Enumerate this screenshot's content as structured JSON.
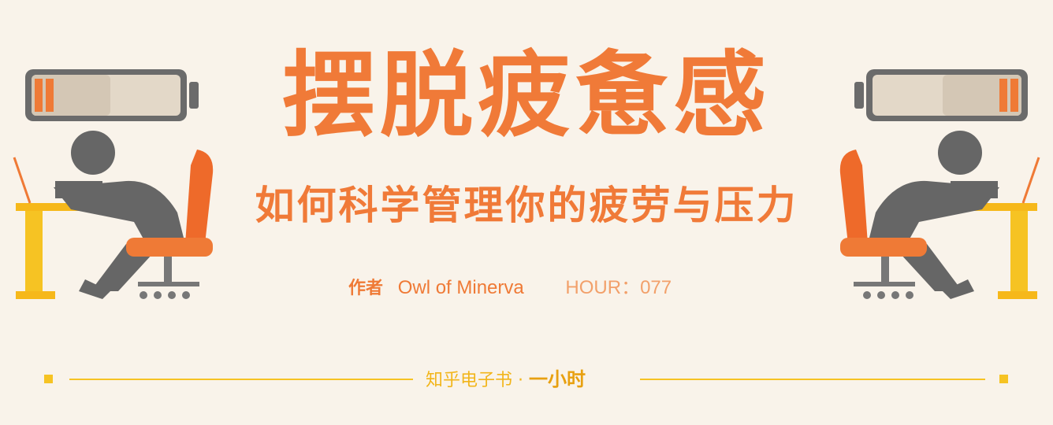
{
  "title": "摆脱疲惫感",
  "subtitle": "如何科学管理你的疲劳与压力",
  "author": {
    "prefix": "作者",
    "name": "Owl of Minerva"
  },
  "hour": "HOUR：077",
  "footer": {
    "publisher": "知乎电子书 ·",
    "brand": "一小时"
  },
  "colors": {
    "accent": "#f07a38",
    "footer": "#f6c323",
    "figure": "#666666",
    "background": "#f9f3ea"
  },
  "icons": [
    "low-battery-icon",
    "tired-worker-at-desk-icon"
  ]
}
